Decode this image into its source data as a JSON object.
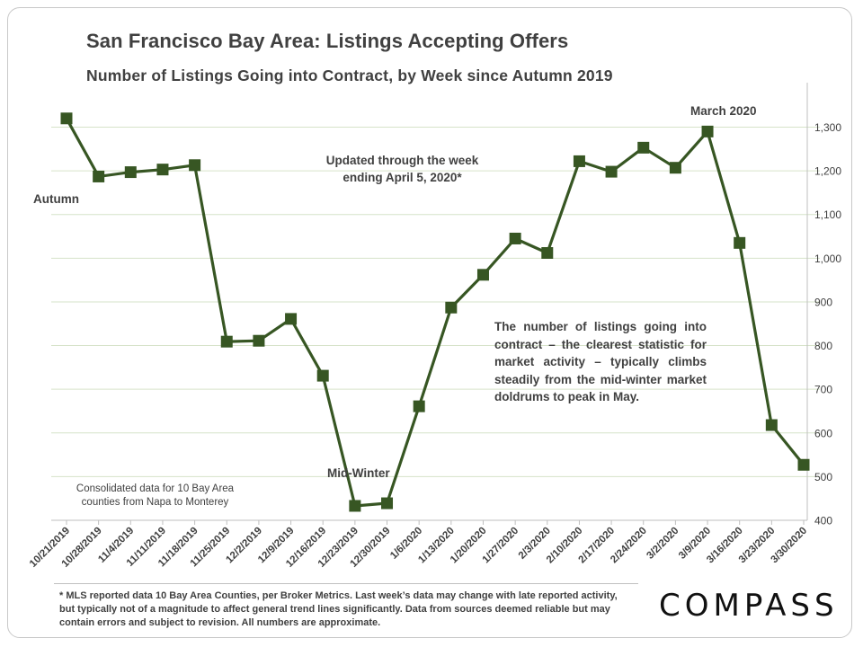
{
  "chart_data": {
    "type": "line",
    "title": "San Francisco Bay Area: Listings Accepting Offers",
    "subtitle": "Number of Listings Going into Contract, by Week since Autumn 2019",
    "xlabel": "",
    "ylabel": "",
    "ylim": [
      400,
      1350
    ],
    "yticks": [
      400,
      500,
      600,
      700,
      800,
      900,
      1000,
      1100,
      1200,
      1300
    ],
    "ytick_labels": [
      "400",
      "500",
      "600",
      "700",
      "800",
      "900",
      "1,000",
      "1,100",
      "1,200",
      "1,300"
    ],
    "yaxis_side": "right",
    "grid": true,
    "categories": [
      "10/21/2019",
      "10/28/2019",
      "11/4/2019",
      "11/11/2019",
      "11/18/2019",
      "11/25/2019",
      "12/2/2019",
      "12/9/2019",
      "12/16/2019",
      "12/23/2019",
      "12/30/2019",
      "1/6/2020",
      "1/13/2020",
      "1/20/2020",
      "1/27/2020",
      "2/3/2020",
      "2/10/2020",
      "2/17/2020",
      "2/24/2020",
      "3/2/2020",
      "3/9/2020",
      "3/16/2020",
      "3/23/2020",
      "3/30/2020"
    ],
    "series": [
      {
        "name": "Listings Going into Contract",
        "color": "#375623",
        "values": [
          1320,
          1187,
          1197,
          1203,
          1213,
          809,
          811,
          861,
          731,
          433,
          439,
          661,
          887,
          962,
          1045,
          1012,
          1222,
          1198,
          1253,
          1207,
          1290,
          1035,
          618,
          527
        ]
      }
    ]
  },
  "annotations": {
    "updated": "Updated through the week ending April 5, 2020*",
    "autumn": "Autumn",
    "march": "March 2020",
    "mid_winter": "Mid-Winter",
    "body": "The number of listings going into contract – the clearest statistic for market activity – typically climbs steadily from the mid-winter market doldrums to peak in May.",
    "consolidated": "Consolidated data for 10 Bay Area counties from Napa to Monterey"
  },
  "footnote": "* MLS reported data 10 Bay Area Counties, per Broker Metrics. Last week’s data may change with late reported activity, but typically not of a magnitude to affect general trend lines significantly. Data from sources deemed reliable but may contain errors and subject to revision. All numbers are approximate.",
  "logo": "COMPASS",
  "colors": {
    "line": "#375623",
    "marker": "#375623",
    "grid": "#d6e3c9",
    "axis_text": "#404040"
  }
}
